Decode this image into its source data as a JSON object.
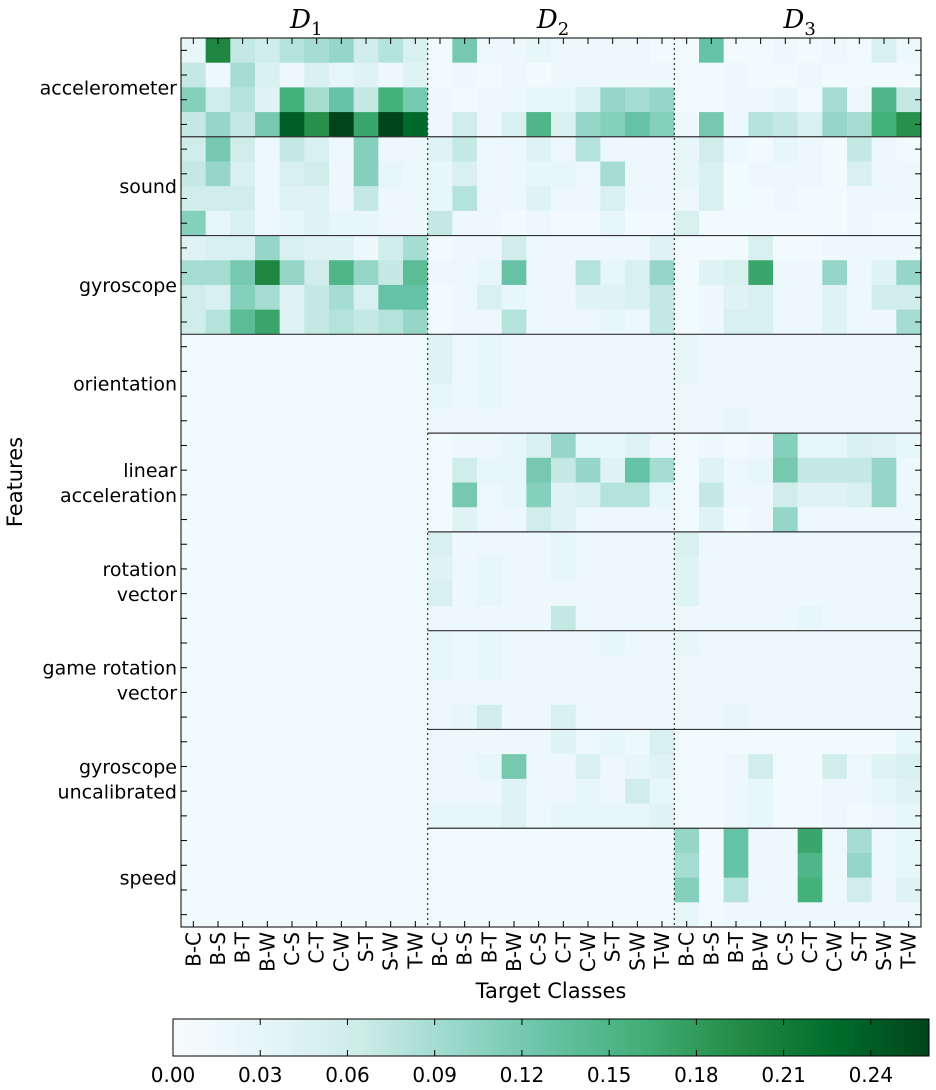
{
  "chart_data": {
    "type": "heatmap",
    "xlabel": "Target Classes",
    "ylabel": "Features",
    "panels": [
      {
        "title": "D",
        "subscript": "1"
      },
      {
        "title": "D",
        "subscript": "2"
      },
      {
        "title": "D",
        "subscript": "3"
      }
    ],
    "classes": [
      "B-C",
      "B-S",
      "B-T",
      "B-W",
      "C-S",
      "C-T",
      "C-W",
      "S-T",
      "S-W",
      "T-W"
    ],
    "features": [
      {
        "lines": [
          "accelerometer"
        ]
      },
      {
        "lines": [
          "sound"
        ]
      },
      {
        "lines": [
          "gyroscope"
        ]
      },
      {
        "lines": [
          "orientation"
        ]
      },
      {
        "lines": [
          "linear",
          "acceleration"
        ]
      },
      {
        "lines": [
          "rotation",
          "vector"
        ]
      },
      {
        "lines": [
          "game rotation",
          "vector"
        ]
      },
      {
        "lines": [
          "gyroscope",
          "uncalibrated"
        ]
      },
      {
        "lines": [
          "speed"
        ]
      }
    ],
    "sub_rows_per_feature": 4,
    "colorbar": {
      "min": 0.0,
      "max": 0.26,
      "ticks": [
        "0.00",
        "0.03",
        "0.06",
        "0.09",
        "0.12",
        "0.15",
        "0.18",
        "0.21",
        "0.24"
      ],
      "colors": [
        "#f7fcfd",
        "#e5f5f9",
        "#ccece6",
        "#99d8c9",
        "#66c2a4",
        "#41ae76",
        "#238b45",
        "#006d2c",
        "#00441b"
      ]
    },
    "values": [
      [
        0.03,
        0.2,
        0.07,
        0.06,
        0.08,
        0.09,
        0.1,
        0.06,
        0.08,
        0.05,
        0.01,
        0.12,
        0.02,
        0.02,
        0.03,
        0.02,
        0.02,
        0.02,
        0.02,
        0.01,
        0.01,
        0.13,
        0.01,
        0.01,
        0.02,
        0.01,
        0.02,
        0.01,
        0.05,
        0.02
      ],
      [
        0.07,
        0.02,
        0.09,
        0.05,
        0.02,
        0.05,
        0.03,
        0.04,
        0.02,
        0.04,
        0.01,
        0.02,
        0.01,
        0.02,
        0.01,
        0.02,
        0.02,
        0.02,
        0.02,
        0.02,
        0.01,
        0.01,
        0.02,
        0.01,
        0.01,
        0.02,
        0.01,
        0.01,
        0.01,
        0.01
      ],
      [
        0.11,
        0.06,
        0.08,
        0.04,
        0.16,
        0.09,
        0.13,
        0.07,
        0.16,
        0.12,
        0.02,
        0.01,
        0.02,
        0.02,
        0.03,
        0.03,
        0.05,
        0.1,
        0.09,
        0.1,
        0.01,
        0.01,
        0.02,
        0.02,
        0.03,
        0.01,
        0.09,
        0.02,
        0.15,
        0.07
      ],
      [
        0.07,
        0.1,
        0.07,
        0.12,
        0.24,
        0.19,
        0.26,
        0.17,
        0.26,
        0.23,
        0.02,
        0.06,
        0.02,
        0.05,
        0.15,
        0.05,
        0.1,
        0.11,
        0.13,
        0.11,
        0.02,
        0.12,
        0.02,
        0.08,
        0.07,
        0.05,
        0.1,
        0.09,
        0.16,
        0.19
      ],
      [
        0.06,
        0.12,
        0.06,
        0.02,
        0.07,
        0.05,
        0.02,
        0.11,
        0.02,
        0.02,
        0.04,
        0.07,
        0.02,
        0.02,
        0.04,
        0.02,
        0.08,
        0.02,
        0.02,
        0.02,
        0.03,
        0.06,
        0.02,
        0.01,
        0.03,
        0.02,
        0.01,
        0.07,
        0.02,
        0.01
      ],
      [
        0.07,
        0.1,
        0.05,
        0.02,
        0.05,
        0.06,
        0.02,
        0.11,
        0.03,
        0.02,
        0.03,
        0.05,
        0.02,
        0.02,
        0.03,
        0.03,
        0.02,
        0.09,
        0.02,
        0.02,
        0.03,
        0.05,
        0.01,
        0.02,
        0.02,
        0.02,
        0.01,
        0.05,
        0.02,
        0.02
      ],
      [
        0.06,
        0.06,
        0.06,
        0.02,
        0.04,
        0.04,
        0.02,
        0.07,
        0.02,
        0.02,
        0.03,
        0.08,
        0.02,
        0.02,
        0.04,
        0.02,
        0.02,
        0.05,
        0.02,
        0.02,
        0.02,
        0.05,
        0.01,
        0.01,
        0.02,
        0.01,
        0.01,
        0.02,
        0.02,
        0.02
      ],
      [
        0.11,
        0.03,
        0.05,
        0.02,
        0.03,
        0.04,
        0.03,
        0.03,
        0.02,
        0.02,
        0.07,
        0.02,
        0.02,
        0.01,
        0.02,
        0.01,
        0.01,
        0.03,
        0.01,
        0.01,
        0.05,
        0.01,
        0.01,
        0.01,
        0.01,
        0.01,
        0.01,
        0.02,
        0.01,
        0.01
      ],
      [
        0.04,
        0.05,
        0.05,
        0.1,
        0.05,
        0.04,
        0.04,
        0.02,
        0.06,
        0.09,
        0.01,
        0.02,
        0.02,
        0.06,
        0.02,
        0.02,
        0.02,
        0.02,
        0.02,
        0.04,
        0.01,
        0.01,
        0.01,
        0.05,
        0.01,
        0.01,
        0.02,
        0.02,
        0.02,
        0.02
      ],
      [
        0.09,
        0.09,
        0.12,
        0.2,
        0.1,
        0.06,
        0.15,
        0.1,
        0.07,
        0.14,
        0.02,
        0.02,
        0.03,
        0.13,
        0.02,
        0.02,
        0.08,
        0.03,
        0.05,
        0.1,
        0.01,
        0.04,
        0.05,
        0.17,
        0.02,
        0.02,
        0.1,
        0.02,
        0.04,
        0.1
      ],
      [
        0.06,
        0.05,
        0.11,
        0.09,
        0.04,
        0.07,
        0.09,
        0.05,
        0.13,
        0.13,
        0.01,
        0.02,
        0.05,
        0.03,
        0.02,
        0.02,
        0.04,
        0.04,
        0.05,
        0.07,
        0.01,
        0.02,
        0.04,
        0.05,
        0.02,
        0.02,
        0.04,
        0.02,
        0.06,
        0.06
      ],
      [
        0.06,
        0.08,
        0.14,
        0.17,
        0.04,
        0.07,
        0.08,
        0.07,
        0.08,
        0.1,
        0.01,
        0.02,
        0.02,
        0.08,
        0.02,
        0.02,
        0.02,
        0.03,
        0.02,
        0.07,
        0.01,
        0.02,
        0.05,
        0.05,
        0.02,
        0.02,
        0.04,
        0.02,
        0.02,
        0.09
      ],
      [
        0.01,
        0.01,
        0.01,
        0.01,
        0.01,
        0.01,
        0.01,
        0.01,
        0.01,
        0.01,
        0.04,
        0.02,
        0.03,
        0.02,
        0.02,
        0.02,
        0.02,
        0.02,
        0.02,
        0.02,
        0.03,
        0.02,
        0.02,
        0.02,
        0.02,
        0.02,
        0.02,
        0.02,
        0.02,
        0.02
      ],
      [
        0.01,
        0.01,
        0.01,
        0.01,
        0.01,
        0.01,
        0.01,
        0.01,
        0.01,
        0.01,
        0.04,
        0.02,
        0.03,
        0.02,
        0.02,
        0.02,
        0.02,
        0.02,
        0.02,
        0.02,
        0.03,
        0.02,
        0.02,
        0.02,
        0.02,
        0.02,
        0.02,
        0.02,
        0.02,
        0.02
      ],
      [
        0.01,
        0.01,
        0.01,
        0.01,
        0.01,
        0.01,
        0.01,
        0.01,
        0.01,
        0.01,
        0.03,
        0.02,
        0.03,
        0.02,
        0.02,
        0.02,
        0.02,
        0.02,
        0.02,
        0.02,
        0.02,
        0.02,
        0.02,
        0.02,
        0.02,
        0.02,
        0.02,
        0.02,
        0.02,
        0.02
      ],
      [
        0.01,
        0.01,
        0.01,
        0.01,
        0.01,
        0.01,
        0.01,
        0.01,
        0.01,
        0.01,
        0.02,
        0.02,
        0.02,
        0.02,
        0.02,
        0.02,
        0.02,
        0.02,
        0.02,
        0.02,
        0.02,
        0.02,
        0.03,
        0.02,
        0.02,
        0.02,
        0.02,
        0.02,
        0.02,
        0.02
      ],
      [
        0.01,
        0.01,
        0.01,
        0.01,
        0.01,
        0.01,
        0.01,
        0.01,
        0.01,
        0.01,
        0.01,
        0.02,
        0.02,
        0.03,
        0.05,
        0.1,
        0.03,
        0.03,
        0.04,
        0.02,
        0.01,
        0.02,
        0.01,
        0.02,
        0.11,
        0.03,
        0.03,
        0.05,
        0.04,
        0.03
      ],
      [
        0.01,
        0.01,
        0.01,
        0.01,
        0.01,
        0.01,
        0.01,
        0.01,
        0.01,
        0.01,
        0.01,
        0.06,
        0.03,
        0.03,
        0.12,
        0.07,
        0.1,
        0.04,
        0.13,
        0.09,
        0.01,
        0.04,
        0.02,
        0.03,
        0.12,
        0.07,
        0.07,
        0.07,
        0.1,
        0.02
      ],
      [
        0.01,
        0.01,
        0.01,
        0.01,
        0.01,
        0.01,
        0.01,
        0.01,
        0.01,
        0.01,
        0.01,
        0.12,
        0.02,
        0.03,
        0.11,
        0.04,
        0.05,
        0.08,
        0.08,
        0.03,
        0.01,
        0.07,
        0.02,
        0.02,
        0.06,
        0.04,
        0.04,
        0.05,
        0.1,
        0.02
      ],
      [
        0.01,
        0.01,
        0.01,
        0.01,
        0.01,
        0.01,
        0.01,
        0.01,
        0.01,
        0.01,
        0.01,
        0.04,
        0.02,
        0.02,
        0.06,
        0.04,
        0.02,
        0.02,
        0.02,
        0.02,
        0.01,
        0.04,
        0.01,
        0.02,
        0.1,
        0.02,
        0.02,
        0.02,
        0.02,
        0.02
      ],
      [
        0.01,
        0.01,
        0.01,
        0.01,
        0.01,
        0.01,
        0.01,
        0.01,
        0.01,
        0.01,
        0.05,
        0.02,
        0.02,
        0.02,
        0.02,
        0.03,
        0.02,
        0.02,
        0.02,
        0.02,
        0.05,
        0.02,
        0.02,
        0.02,
        0.02,
        0.02,
        0.02,
        0.02,
        0.02,
        0.02
      ],
      [
        0.01,
        0.01,
        0.01,
        0.01,
        0.01,
        0.01,
        0.01,
        0.01,
        0.01,
        0.01,
        0.04,
        0.02,
        0.03,
        0.02,
        0.02,
        0.03,
        0.02,
        0.02,
        0.02,
        0.02,
        0.04,
        0.02,
        0.02,
        0.02,
        0.02,
        0.02,
        0.02,
        0.02,
        0.02,
        0.02
      ],
      [
        0.01,
        0.01,
        0.01,
        0.01,
        0.01,
        0.01,
        0.01,
        0.01,
        0.01,
        0.01,
        0.05,
        0.02,
        0.03,
        0.02,
        0.02,
        0.02,
        0.02,
        0.02,
        0.02,
        0.02,
        0.04,
        0.02,
        0.02,
        0.02,
        0.02,
        0.02,
        0.02,
        0.02,
        0.02,
        0.02
      ],
      [
        0.01,
        0.01,
        0.01,
        0.01,
        0.01,
        0.01,
        0.01,
        0.01,
        0.01,
        0.01,
        0.02,
        0.02,
        0.02,
        0.02,
        0.02,
        0.07,
        0.02,
        0.02,
        0.02,
        0.02,
        0.02,
        0.02,
        0.02,
        0.02,
        0.02,
        0.03,
        0.02,
        0.02,
        0.02,
        0.02
      ],
      [
        0.01,
        0.01,
        0.01,
        0.01,
        0.01,
        0.01,
        0.01,
        0.01,
        0.01,
        0.01,
        0.03,
        0.02,
        0.03,
        0.02,
        0.02,
        0.02,
        0.02,
        0.03,
        0.02,
        0.02,
        0.03,
        0.02,
        0.02,
        0.02,
        0.02,
        0.02,
        0.02,
        0.02,
        0.02,
        0.02
      ],
      [
        0.01,
        0.01,
        0.01,
        0.01,
        0.01,
        0.01,
        0.01,
        0.01,
        0.01,
        0.01,
        0.03,
        0.02,
        0.03,
        0.02,
        0.02,
        0.02,
        0.02,
        0.02,
        0.02,
        0.02,
        0.02,
        0.02,
        0.02,
        0.02,
        0.02,
        0.02,
        0.02,
        0.02,
        0.02,
        0.02
      ],
      [
        0.01,
        0.01,
        0.01,
        0.01,
        0.01,
        0.01,
        0.01,
        0.01,
        0.01,
        0.01,
        0.02,
        0.02,
        0.02,
        0.02,
        0.02,
        0.02,
        0.02,
        0.02,
        0.02,
        0.02,
        0.02,
        0.02,
        0.02,
        0.02,
        0.02,
        0.02,
        0.02,
        0.02,
        0.02,
        0.02
      ],
      [
        0.01,
        0.01,
        0.01,
        0.01,
        0.01,
        0.01,
        0.01,
        0.01,
        0.01,
        0.01,
        0.02,
        0.03,
        0.06,
        0.02,
        0.02,
        0.05,
        0.02,
        0.02,
        0.02,
        0.02,
        0.02,
        0.02,
        0.03,
        0.02,
        0.02,
        0.02,
        0.02,
        0.02,
        0.02,
        0.02
      ],
      [
        0.01,
        0.01,
        0.01,
        0.01,
        0.01,
        0.01,
        0.01,
        0.01,
        0.01,
        0.01,
        0.02,
        0.02,
        0.02,
        0.02,
        0.02,
        0.04,
        0.02,
        0.03,
        0.02,
        0.05,
        0.01,
        0.01,
        0.01,
        0.01,
        0.01,
        0.01,
        0.01,
        0.01,
        0.01,
        0.03
      ],
      [
        0.01,
        0.01,
        0.01,
        0.01,
        0.01,
        0.01,
        0.01,
        0.01,
        0.01,
        0.01,
        0.02,
        0.02,
        0.03,
        0.12,
        0.02,
        0.02,
        0.05,
        0.02,
        0.03,
        0.04,
        0.01,
        0.01,
        0.02,
        0.06,
        0.01,
        0.01,
        0.06,
        0.02,
        0.04,
        0.05
      ],
      [
        0.01,
        0.01,
        0.01,
        0.01,
        0.01,
        0.01,
        0.01,
        0.01,
        0.01,
        0.01,
        0.02,
        0.02,
        0.02,
        0.04,
        0.02,
        0.02,
        0.03,
        0.02,
        0.06,
        0.03,
        0.01,
        0.01,
        0.02,
        0.03,
        0.01,
        0.01,
        0.02,
        0.02,
        0.03,
        0.04
      ],
      [
        0.01,
        0.01,
        0.01,
        0.01,
        0.01,
        0.01,
        0.01,
        0.01,
        0.01,
        0.01,
        0.03,
        0.03,
        0.03,
        0.04,
        0.02,
        0.03,
        0.03,
        0.03,
        0.03,
        0.04,
        0.01,
        0.01,
        0.02,
        0.03,
        0.01,
        0.01,
        0.02,
        0.01,
        0.02,
        0.03
      ],
      [
        0.01,
        0.01,
        0.01,
        0.01,
        0.01,
        0.01,
        0.01,
        0.01,
        0.01,
        0.01,
        0.01,
        0.01,
        0.01,
        0.01,
        0.01,
        0.01,
        0.01,
        0.01,
        0.01,
        0.01,
        0.1,
        0.01,
        0.13,
        0.02,
        0.02,
        0.17,
        0.02,
        0.09,
        0.02,
        0.03
      ],
      [
        0.01,
        0.01,
        0.01,
        0.01,
        0.01,
        0.01,
        0.01,
        0.01,
        0.01,
        0.01,
        0.01,
        0.01,
        0.01,
        0.01,
        0.01,
        0.01,
        0.01,
        0.01,
        0.01,
        0.01,
        0.09,
        0.01,
        0.13,
        0.02,
        0.02,
        0.15,
        0.02,
        0.1,
        0.02,
        0.03
      ],
      [
        0.01,
        0.01,
        0.01,
        0.01,
        0.01,
        0.01,
        0.01,
        0.01,
        0.01,
        0.01,
        0.01,
        0.01,
        0.01,
        0.01,
        0.01,
        0.01,
        0.01,
        0.01,
        0.01,
        0.01,
        0.11,
        0.01,
        0.08,
        0.02,
        0.02,
        0.16,
        0.02,
        0.06,
        0.02,
        0.04
      ],
      [
        0.01,
        0.01,
        0.01,
        0.01,
        0.01,
        0.01,
        0.01,
        0.01,
        0.01,
        0.01,
        0.01,
        0.01,
        0.01,
        0.01,
        0.01,
        0.01,
        0.01,
        0.01,
        0.01,
        0.01,
        0.03,
        0.01,
        0.02,
        0.02,
        0.02,
        0.02,
        0.02,
        0.02,
        0.02,
        0.02
      ]
    ]
  }
}
